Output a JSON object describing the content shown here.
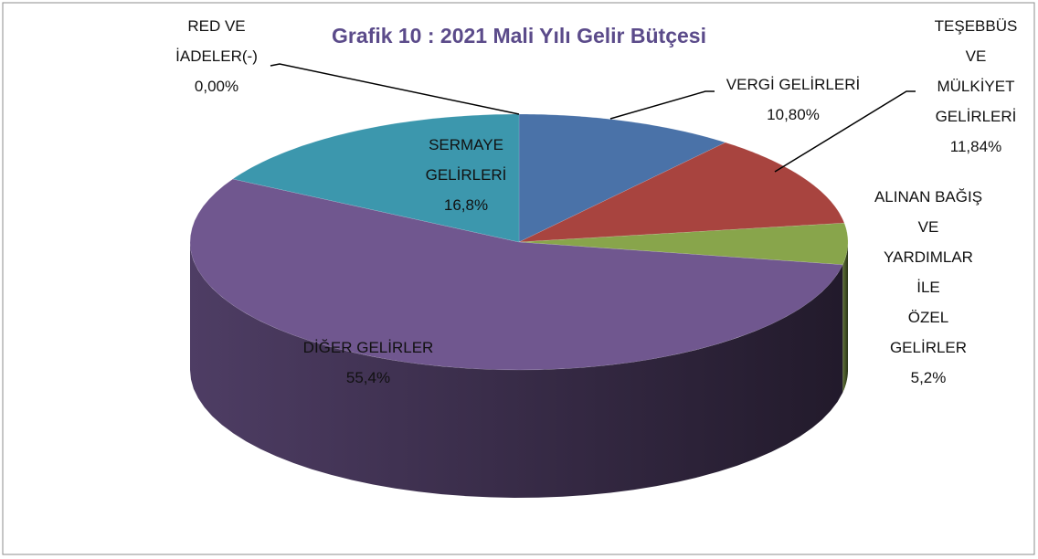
{
  "chart_data": {
    "type": "pie",
    "title": "Grafik 10 : 2021 Mali Yılı Gelir Bütçesi",
    "categories": [
      "VERGİ GELİRLERİ",
      "TEŞEBBÜS VE\nMÜLKİYET\nGELİRLERİ",
      "ALINAN BAĞIŞ VE\nYARDIMLAR İLE\nÖZEL GELİRLER",
      "DİĞER GELİRLER",
      "SERMAYE\nGELİRLERİ",
      "RED VE\nİADELER(-)"
    ],
    "values": [
      10.8,
      11.84,
      5.2,
      55.4,
      16.8,
      0.0
    ],
    "value_labels": [
      "10,80%",
      "11,84%",
      "5,2%",
      "55,4%",
      "16,8%",
      "0,00%"
    ],
    "colors": [
      "#4a72a8",
      "#a8443f",
      "#88a54b",
      "#70578f",
      "#3c97ad",
      "#d2803a"
    ]
  }
}
